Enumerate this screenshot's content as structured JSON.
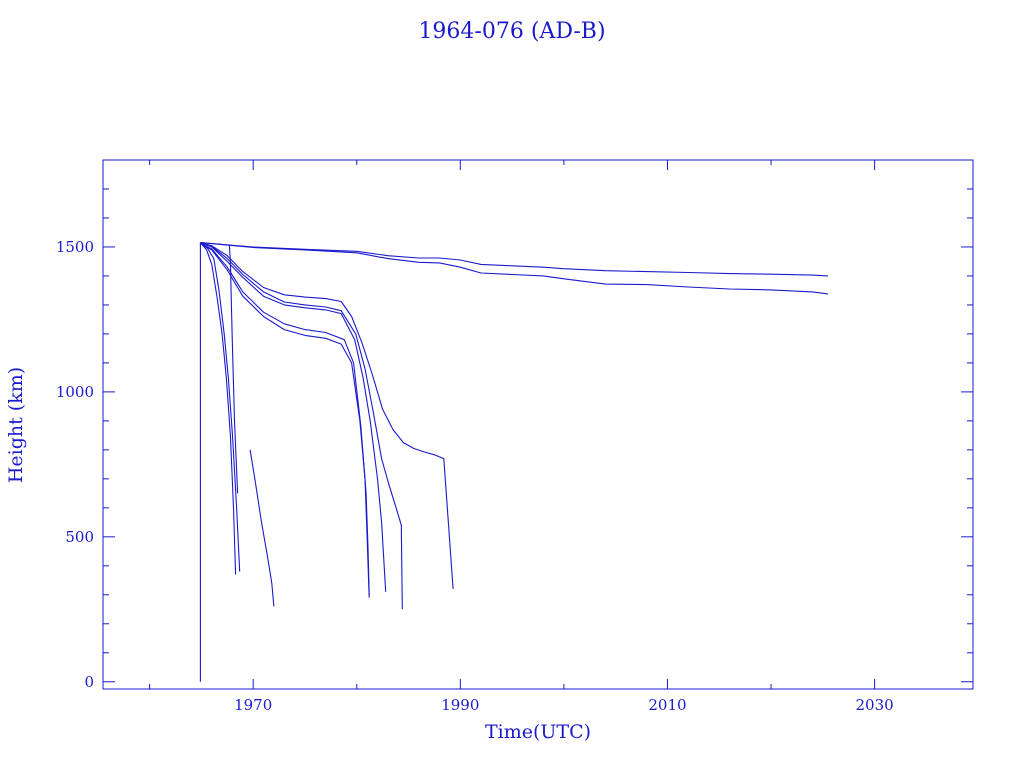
{
  "chart_data": {
    "type": "line",
    "title": "1964-076 (AD-B)",
    "xlabel": "Time(UTC)",
    "ylabel": "Height (km)",
    "xlim": [
      1955.5,
      2039.5
    ],
    "ylim": [
      -25,
      1800
    ],
    "x_major_ticks": [
      1970,
      1990,
      2010,
      2030
    ],
    "x_minor_ticks": [
      1960,
      1980,
      2000,
      2020
    ],
    "y_major_ticks": [
      0,
      500,
      1000,
      1500
    ],
    "y_minor_ticks": [
      100,
      200,
      300,
      400,
      600,
      700,
      800,
      900,
      1100,
      1200,
      1300,
      1400,
      1600,
      1700
    ],
    "grid": false,
    "color": "#1a1acc",
    "series": [
      {
        "x": [
          1964.9,
          1964.9
        ],
        "y": [
          1515,
          0
        ]
      },
      {
        "x": [
          1964.9,
          1965.5,
          1966.0,
          1966.5,
          1967.0,
          1967.4,
          1967.8,
          1968.1,
          1968.3
        ],
        "y": [
          1515,
          1490,
          1440,
          1330,
          1200,
          1050,
          850,
          600,
          370
        ]
      },
      {
        "x": [
          1964.9,
          1965.6,
          1966.2,
          1966.7,
          1967.2,
          1967.6,
          1968.0,
          1968.4,
          1968.7
        ],
        "y": [
          1515,
          1495,
          1460,
          1350,
          1200,
          1050,
          850,
          600,
          380
        ]
      },
      {
        "x": [
          1967.7,
          1967.8,
          1967.9,
          1968.0,
          1968.2,
          1968.5
        ],
        "y": [
          1505,
          1450,
          1300,
          1150,
          900,
          650
        ]
      },
      {
        "x": [
          1969.7,
          1970.2,
          1970.8,
          1971.3,
          1971.8,
          1972.0
        ],
        "y": [
          800,
          690,
          550,
          450,
          340,
          260
        ]
      },
      {
        "x": [
          1964.9,
          1966.0,
          1967.5,
          1969.0,
          1971.0,
          1973.0,
          1975.0,
          1977.0,
          1978.5,
          1979.5,
          1980.3,
          1980.8,
          1981.0,
          1981.2
        ],
        "y": [
          1512,
          1490,
          1420,
          1330,
          1260,
          1215,
          1195,
          1185,
          1165,
          1100,
          900,
          700,
          500,
          290
        ]
      },
      {
        "x": [
          1964.9,
          1966.0,
          1967.5,
          1969.0,
          1971.0,
          1973.0,
          1975.0,
          1977.0,
          1978.8,
          1979.7,
          1980.4,
          1980.9,
          1981.1,
          1981.2
        ],
        "y": [
          1512,
          1493,
          1430,
          1345,
          1275,
          1235,
          1215,
          1205,
          1180,
          1100,
          880,
          650,
          450,
          300
        ]
      },
      {
        "x": [
          1964.9,
          1966.0,
          1967.5,
          1969.0,
          1971.0,
          1973.0,
          1975.0,
          1977.0,
          1978.5,
          1979.8,
          1980.6,
          1981.3,
          1982.0,
          1982.4,
          1982.8
        ],
        "y": [
          1514,
          1500,
          1450,
          1395,
          1330,
          1300,
          1290,
          1283,
          1270,
          1180,
          1050,
          900,
          700,
          550,
          310
        ]
      },
      {
        "x": [
          1964.9,
          1966.0,
          1967.5,
          1969.0,
          1971.0,
          1973.0,
          1975.0,
          1977.0,
          1978.5,
          1979.9,
          1980.8,
          1981.6,
          1982.4,
          1983.1,
          1983.8,
          1984.3,
          1984.4
        ],
        "y": [
          1514,
          1502,
          1460,
          1405,
          1345,
          1310,
          1300,
          1293,
          1280,
          1200,
          1080,
          930,
          770,
          680,
          600,
          540,
          250
        ]
      },
      {
        "x": [
          1964.9,
          1966.0,
          1967.5,
          1969.0,
          1971.0,
          1973.0,
          1975.0,
          1977.0,
          1978.5,
          1979.5,
          1980.5,
          1981.5,
          1982.5,
          1983.5,
          1984.5,
          1985.5,
          1986.5,
          1987.5,
          1988.4,
          1989.3
        ],
        "y": [
          1515,
          1504,
          1470,
          1415,
          1360,
          1335,
          1327,
          1322,
          1312,
          1260,
          1170,
          1060,
          940,
          870,
          825,
          805,
          793,
          783,
          770,
          320
        ]
      },
      {
        "x": [
          1964.9,
          1970.0,
          1975.0,
          1980.0,
          1983.0,
          1986.0,
          1988.0,
          1990.0,
          1992.0,
          1995.0,
          1998.0,
          2000.0,
          2004.0,
          2008.0,
          2012.0,
          2016.0,
          2020.0,
          2024.0,
          2025.5
        ],
        "y": [
          1515,
          1500,
          1492,
          1485,
          1470,
          1462,
          1462,
          1455,
          1440,
          1435,
          1430,
          1425,
          1418,
          1415,
          1412,
          1408,
          1406,
          1403,
          1400
        ]
      },
      {
        "x": [
          1964.9,
          1970.0,
          1975.0,
          1980.0,
          1983.0,
          1986.0,
          1988.0,
          1990.0,
          1992.0,
          1995.0,
          1998.0,
          2000.0,
          2004.0,
          2008.0,
          2012.0,
          2016.0,
          2020.0,
          2024.0,
          2025.5
        ],
        "y": [
          1515,
          1498,
          1490,
          1480,
          1460,
          1447,
          1445,
          1430,
          1410,
          1405,
          1400,
          1390,
          1372,
          1370,
          1362,
          1355,
          1352,
          1345,
          1338
        ]
      }
    ]
  }
}
